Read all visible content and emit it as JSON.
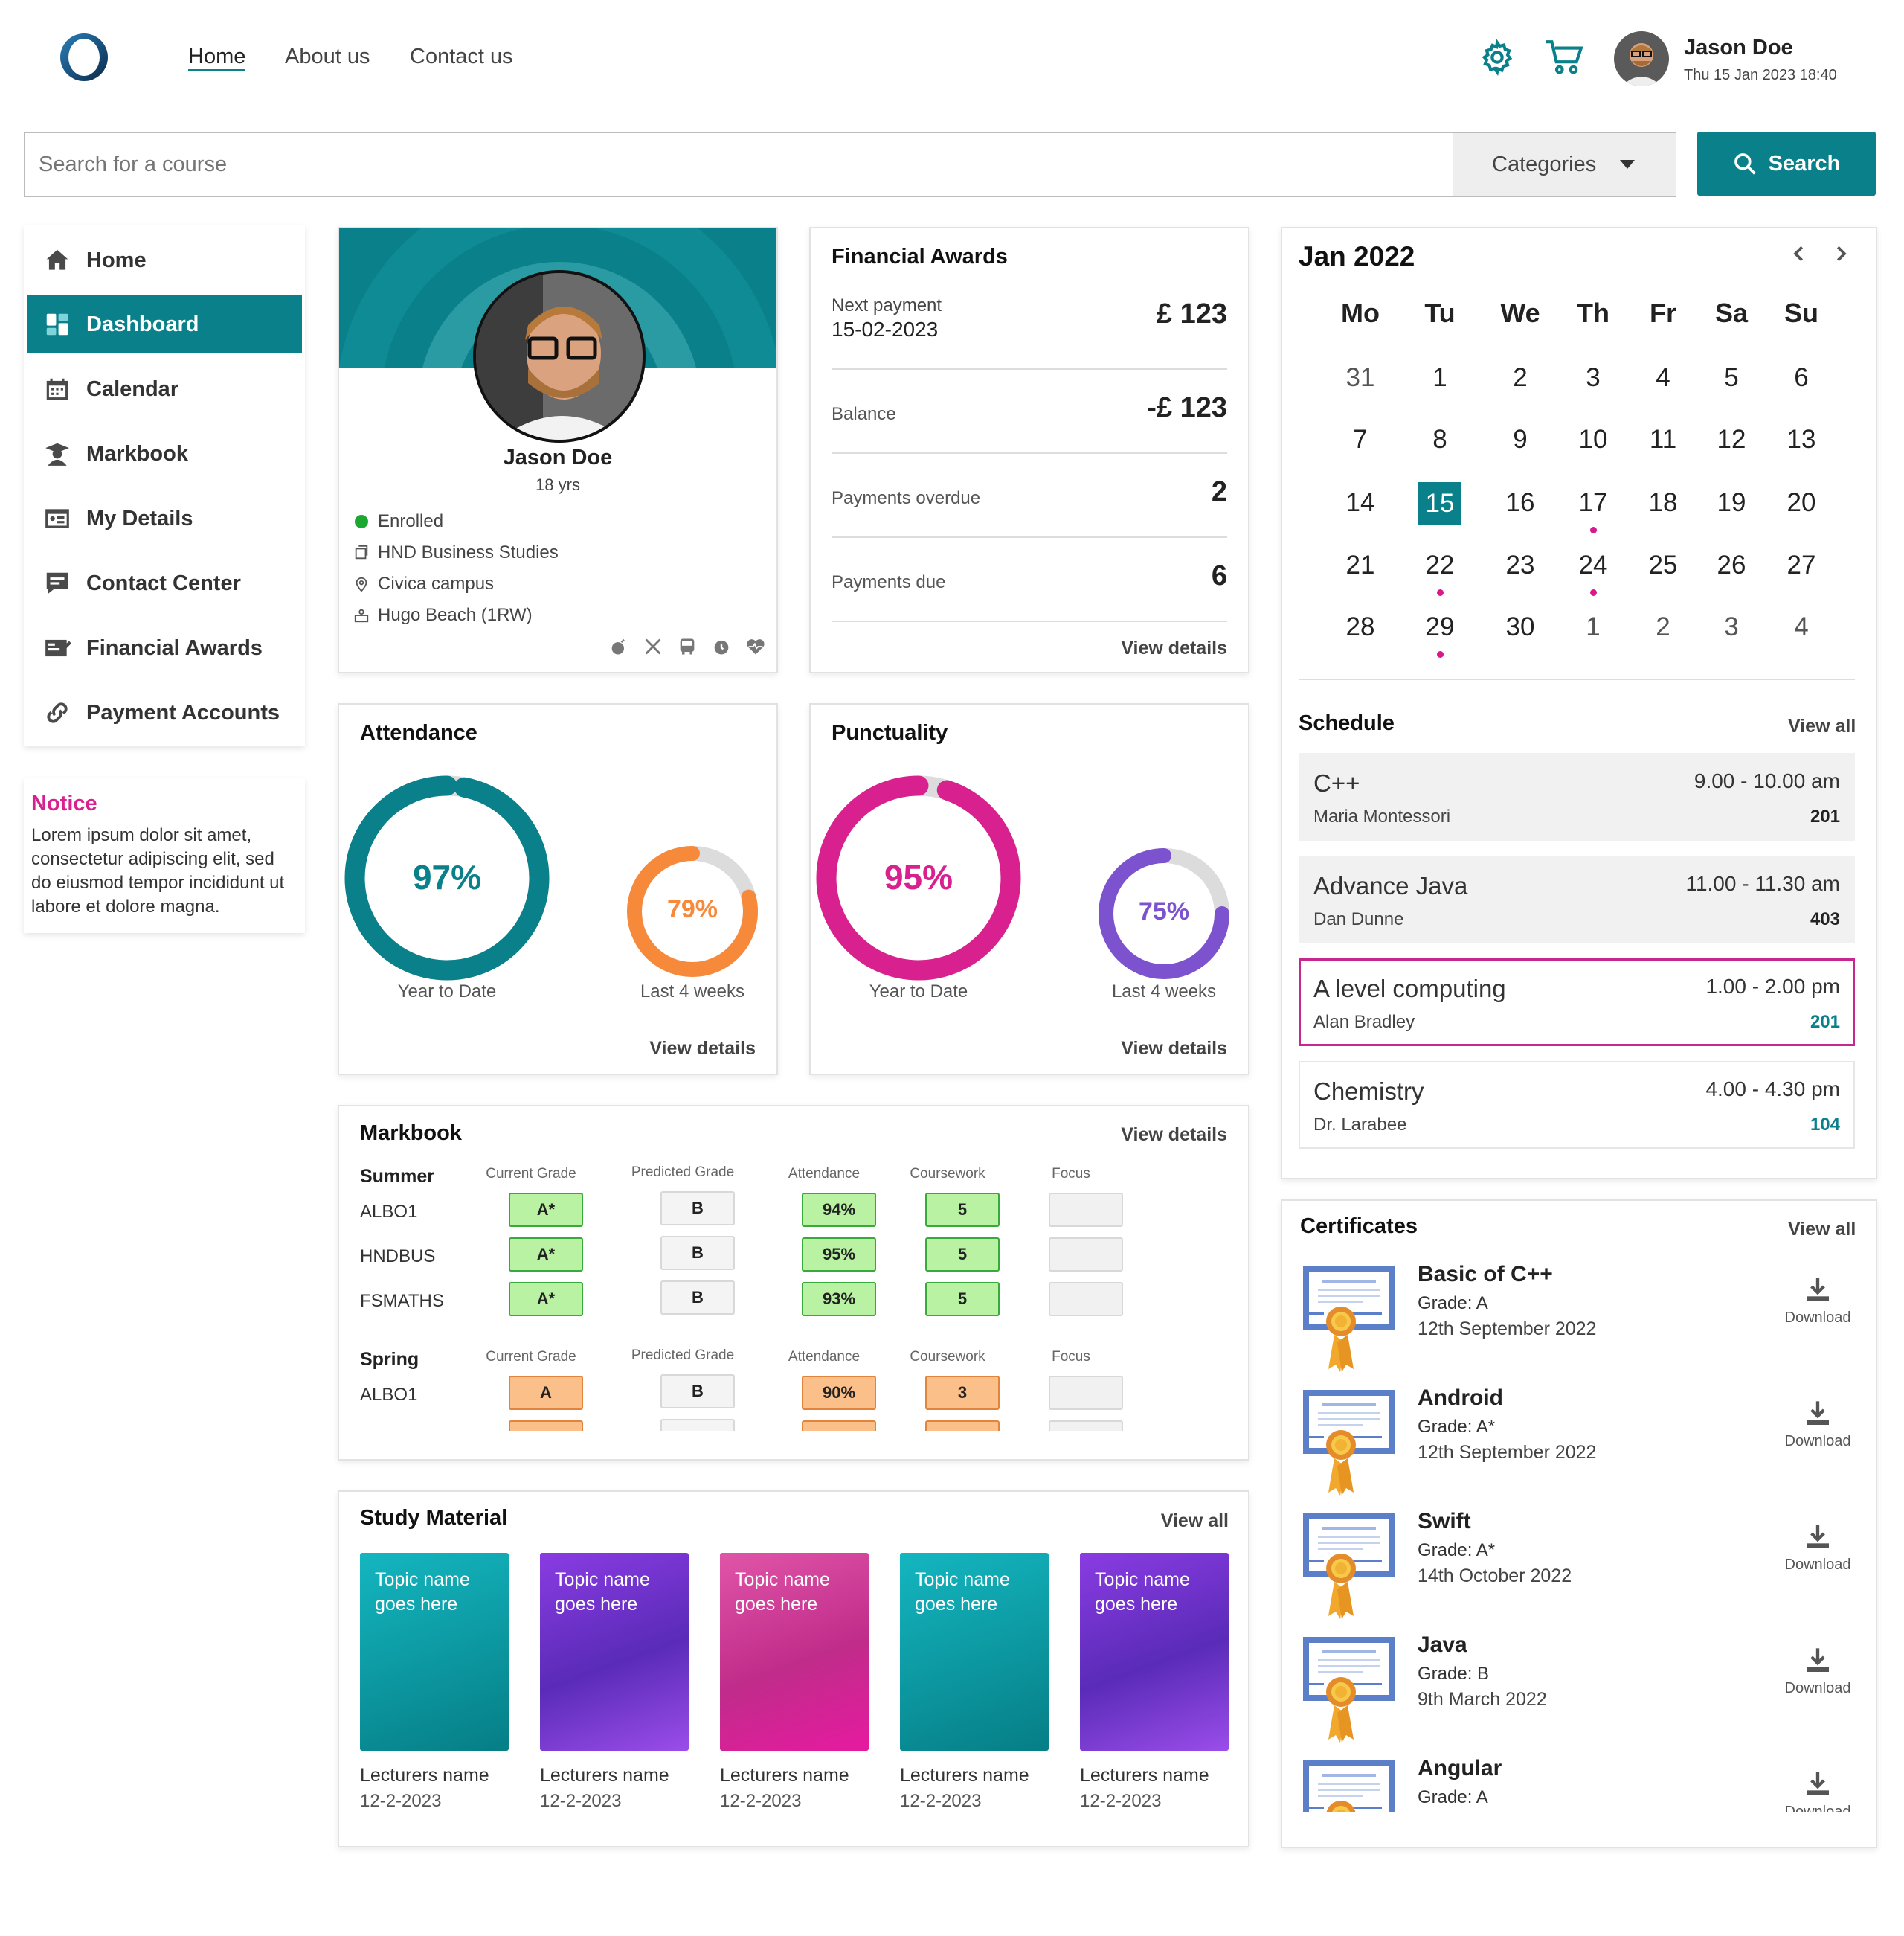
{
  "header": {
    "nav": [
      "Home",
      "About us",
      "Contact us"
    ],
    "user_name": "Jason Doe",
    "datetime": "Thu 15 Jan 2023 18:40",
    "icons": [
      "settings-gear-icon",
      "shopping-cart-icon",
      "avatar"
    ]
  },
  "search": {
    "placeholder": "Search for a course",
    "categories": "Categories",
    "button": "Search"
  },
  "sidebar": {
    "items": [
      "Home",
      "Dashboard",
      "Calendar",
      "Markbook",
      "My Details",
      "Contact Center",
      "Financial Awards",
      "Payment Accounts"
    ],
    "active": "Dashboard"
  },
  "notice": {
    "title": "Notice",
    "text": "Lorem ipsum dolor sit amet, consectetur adipiscing elit, sed do eiusmod tempor incididunt ut labore et dolore magna."
  },
  "profile": {
    "name": "Jason Doe",
    "age": "18 yrs",
    "status": "Enrolled",
    "course": "HND Business Studies",
    "campus": "Civica campus",
    "tutor": "Hugo Beach (1RW)"
  },
  "financial": {
    "title": "Financial Awards",
    "next_payment_label": "Next payment",
    "next_payment_date": "15-02-2023",
    "next_payment_value": "£ 123",
    "balance_label": "Balance",
    "balance_value": "-£ 123",
    "overdue_label": "Payments overdue",
    "overdue_value": "2",
    "due_label": "Payments due",
    "due_value": "6",
    "link": "View details"
  },
  "attendance": {
    "title": "Attendance",
    "ytd": "97%",
    "ytd_label": "Year to Date",
    "last4": "79%",
    "last4_label": "Last 4 weeks",
    "ytd_fraction": 0.97,
    "last4_fraction": 0.79,
    "link": "View details"
  },
  "punctuality": {
    "title": "Punctuality",
    "ytd": "95%",
    "ytd_label": "Year to Date",
    "last4": "75%",
    "last4_label": "Last 4 weeks",
    "ytd_fraction": 0.95,
    "last4_fraction": 0.75,
    "link": "View details"
  },
  "markbook": {
    "title": "Markbook",
    "link": "View details",
    "headers": [
      "Current Grade",
      "Predicted Grade",
      "Attendance",
      "Coursework",
      "Focus"
    ],
    "summer": {
      "label": "Summer",
      "rows": [
        {
          "code": "ALBO1",
          "current": "A*",
          "predicted": "B",
          "attendance": "94%",
          "coursework": "5"
        },
        {
          "code": "HNDBUS",
          "current": "A*",
          "predicted": "B",
          "attendance": "95%",
          "coursework": "5"
        },
        {
          "code": "FSMATHS",
          "current": "A*",
          "predicted": "B",
          "attendance": "93%",
          "coursework": "5"
        }
      ]
    },
    "spring": {
      "label": "Spring",
      "rows": [
        {
          "code": "ALBO1",
          "current": "A",
          "predicted": "B",
          "attendance": "90%",
          "coursework": "3"
        }
      ]
    }
  },
  "study": {
    "title": "Study Material",
    "link": "View all",
    "items": [
      {
        "topic": "Topic name goes here",
        "lecturer": "Lecturers name",
        "date": "12-2-2023"
      },
      {
        "topic": "Topic name goes here",
        "lecturer": "Lecturers name",
        "date": "12-2-2023"
      },
      {
        "topic": "Topic name goes here",
        "lecturer": "Lecturers name",
        "date": "12-2-2023"
      },
      {
        "topic": "Topic name goes here",
        "lecturer": "Lecturers name",
        "date": "12-2-2023"
      },
      {
        "topic": "Topic name goes here",
        "lecturer": "Lecturers name",
        "date": "12-2-2023"
      }
    ]
  },
  "calendar": {
    "month": "Jan 2022",
    "weekdays": [
      "Mo",
      "Tu",
      "We",
      "Th",
      "Fr",
      "Sa",
      "Su"
    ],
    "weeks": [
      [
        "31",
        "1",
        "2",
        "3",
        "4",
        "5",
        "6"
      ],
      [
        "7",
        "8",
        "9",
        "10",
        "11",
        "12",
        "13"
      ],
      [
        "14",
        "15",
        "16",
        "17",
        "18",
        "19",
        "20"
      ],
      [
        "21",
        "22",
        "23",
        "24",
        "25",
        "26",
        "27"
      ],
      [
        "28",
        "29",
        "30",
        "1",
        "2",
        "3",
        "4"
      ]
    ],
    "selected": "15"
  },
  "schedule": {
    "title": "Schedule",
    "link": "View all",
    "items": [
      {
        "title": "C++",
        "lecturer": "Maria Montessori",
        "time": "9.00 - 10.00 am",
        "room": "201"
      },
      {
        "title": "Advance Java",
        "lecturer": "Dan Dunne",
        "time": "11.00 - 11.30 am",
        "room": "403"
      },
      {
        "title": "A level computing",
        "lecturer": "Alan Bradley",
        "time": "1.00 - 2.00 pm",
        "room": "201"
      },
      {
        "title": "Chemistry",
        "lecturer": "Dr. Larabee",
        "time": "4.00 - 4.30 pm",
        "room": "104"
      }
    ]
  },
  "certificates": {
    "title": "Certificates",
    "link": "View all",
    "download": "Download",
    "items": [
      {
        "name": "Basic of C++",
        "grade": "Grade: A",
        "date": "12th September 2022"
      },
      {
        "name": "Android",
        "grade": "Grade: A*",
        "date": "12th September 2022"
      },
      {
        "name": "Swift",
        "grade": "Grade: A*",
        "date": "14th October 2022"
      },
      {
        "name": "Java",
        "grade": "Grade: B",
        "date": "9th March 2022"
      },
      {
        "name": "Angular",
        "grade": "Grade: A",
        "date": ""
      }
    ]
  },
  "colors": {
    "teal": "#09808a",
    "orange": "#f7893a",
    "magenta": "#d9208f",
    "purple": "#7c52cf",
    "pink_border": "#c6288d"
  }
}
